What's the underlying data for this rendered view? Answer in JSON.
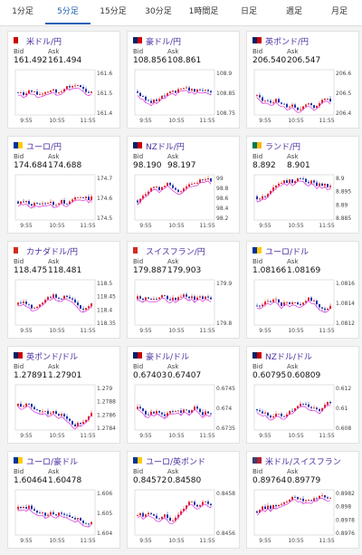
{
  "tabs": [
    "1分足",
    "5分足",
    "15分足",
    "30分足",
    "1時間足",
    "日足",
    "週足",
    "月足"
  ],
  "active_tab": 1,
  "labels": {
    "bid": "Bid",
    "ask": "Ask",
    "xticks": [
      "9:55",
      "10:55",
      "11:55"
    ]
  },
  "cards": [
    {
      "name": "米ドル/円",
      "bid": "161.492",
      "ask": "161.494",
      "yticks": [
        "161.6",
        "161.5",
        "161.4"
      ]
    },
    {
      "name": "豪ドル/円",
      "bid": "108.856",
      "ask": "108.861",
      "yticks": [
        "108.9",
        "108.85",
        "108.75"
      ]
    },
    {
      "name": "英ポンド/円",
      "bid": "206.540",
      "ask": "206.547",
      "yticks": [
        "206.6",
        "206.5",
        "206.4"
      ]
    },
    {
      "name": "ユーロ/円",
      "bid": "174.684",
      "ask": "174.688",
      "yticks": [
        "174.7",
        "174.6",
        "174.5"
      ]
    },
    {
      "name": "NZドル/円",
      "bid": "98.190",
      "ask": "98.197",
      "yticks": [
        "99",
        "98.8",
        "98.6",
        "98.4",
        "98.2"
      ]
    },
    {
      "name": "ランド/円",
      "bid": "8.892",
      "ask": "8.901",
      "yticks": [
        "8.9",
        "8.895",
        "8.89",
        "8.885"
      ]
    },
    {
      "name": "カナダドル/円",
      "bid": "118.475",
      "ask": "118.481",
      "yticks": [
        "118.5",
        "118.45",
        "118.4",
        "118.35"
      ]
    },
    {
      "name": "スイスフラン/円",
      "bid": "179.887",
      "ask": "179.903",
      "yticks": [
        "179.9",
        "179.8"
      ]
    },
    {
      "name": "ユーロ/ドル",
      "bid": "1.08166",
      "ask": "1.08169",
      "yticks": [
        "1.0816",
        "1.0814",
        "1.0812"
      ]
    },
    {
      "name": "英ポンド/ドル",
      "bid": "1.27891",
      "ask": "1.27901",
      "yticks": [
        "1.279",
        "1.2788",
        "1.2786",
        "1.2784"
      ]
    },
    {
      "name": "豪ドル/ドル",
      "bid": "0.67403",
      "ask": "0.67407",
      "yticks": [
        "0.6745",
        "0.674",
        "0.6735"
      ]
    },
    {
      "name": "NZドル/ドル",
      "bid": "0.60795",
      "ask": "0.60809",
      "yticks": [
        "0.612",
        "0.61",
        "0.608"
      ]
    },
    {
      "name": "ユーロ/豪ドル",
      "bid": "1.60464",
      "ask": "1.60478",
      "yticks": [
        "1.606",
        "1.605",
        "1.604"
      ]
    },
    {
      "name": "ユーロ/英ポンド",
      "bid": "0.84572",
      "ask": "0.84580",
      "yticks": [
        "0.8458",
        "0.8456"
      ]
    },
    {
      "name": "米ドル/スイスフラン",
      "bid": "0.89764",
      "ask": "0.89779",
      "yticks": [
        "0.8982",
        "0.898",
        "0.8978",
        "0.8976"
      ]
    }
  ]
}
